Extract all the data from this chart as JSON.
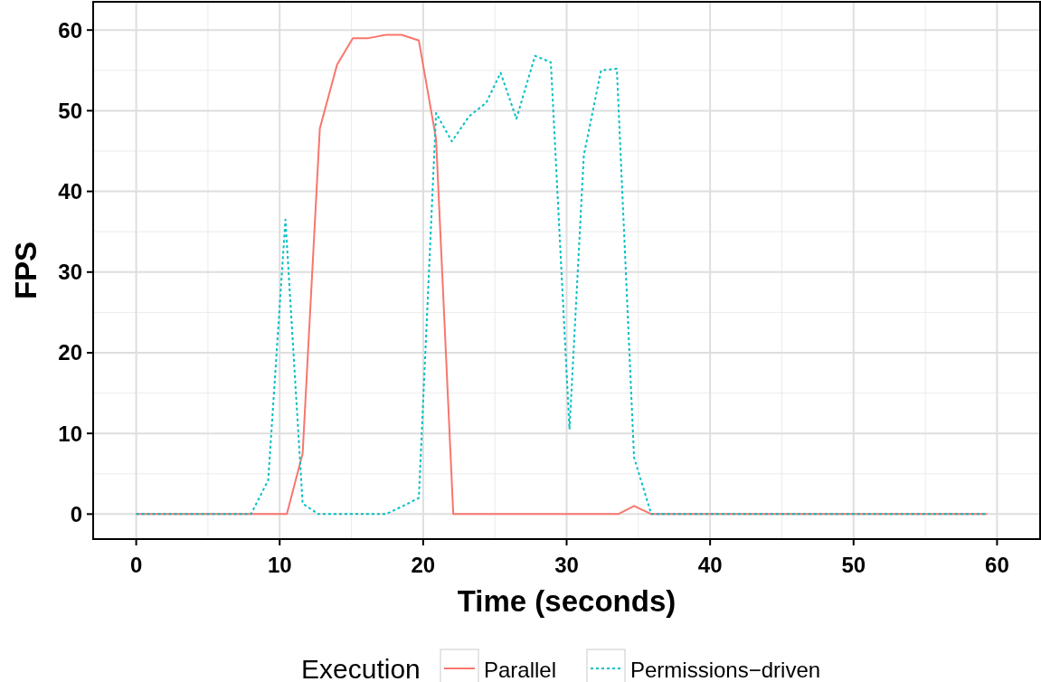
{
  "chart_data": {
    "type": "line",
    "xlabel": "Time (seconds)",
    "ylabel": "FPS",
    "legend_title": "Execution",
    "legend": "bottom",
    "grid": true,
    "xlim": [
      -3,
      63
    ],
    "ylim": [
      -3.1,
      63.5
    ],
    "xticks": [
      0,
      10,
      20,
      30,
      40,
      50,
      60
    ],
    "yticks": [
      0,
      10,
      20,
      30,
      40,
      50,
      60
    ],
    "series": [
      {
        "name": "Parallel",
        "color": "#f8766d",
        "line_style": "solid",
        "x": [
          0,
          10.5,
          11.6,
          12.8,
          14.0,
          15.1,
          16.2,
          17.4,
          18.5,
          19.7,
          20.9,
          22.1,
          33.6,
          34.7,
          35.9,
          59.3
        ],
        "values": [
          0,
          0,
          7.5,
          47.8,
          55.7,
          59,
          59,
          59.4,
          59.4,
          58.7,
          46.5,
          0,
          0,
          1,
          0,
          0
        ]
      },
      {
        "name": "Permissions−driven",
        "color": "#00bfc4",
        "line_style": "dotted",
        "x": [
          0,
          8.0,
          9.2,
          10.4,
          11.6,
          12.7,
          17.4,
          18.6,
          19.7,
          20.9,
          22.0,
          23.2,
          24.4,
          25.4,
          26.5,
          27.8,
          28.9,
          30.2,
          31.2,
          32.4,
          33.5,
          34.7,
          35.9,
          59.3
        ],
        "values": [
          0,
          0,
          4.2,
          36.5,
          1.3,
          0,
          0,
          1,
          2,
          49.7,
          46.2,
          49.3,
          51,
          54.7,
          49,
          56.8,
          56,
          10.5,
          44.5,
          55,
          55.2,
          7,
          0,
          0
        ]
      }
    ]
  }
}
